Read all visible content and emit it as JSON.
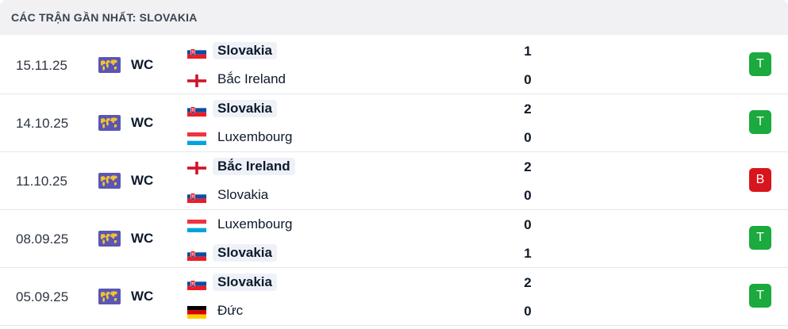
{
  "header": {
    "title": "CÁC TRẬN GẦN NHẤT: SLOVAKIA"
  },
  "colors": {
    "win": "#1aaa3d",
    "loss": "#d8151d",
    "win_highlight": "#eef2f8"
  },
  "matches": [
    {
      "date": "15.11.25",
      "competition": "WC",
      "competition_icon": "world-map-icon",
      "home": {
        "name": "Slovakia",
        "flag": "slovakia-flag",
        "score": "1",
        "winner": true
      },
      "away": {
        "name": "Bắc Ireland",
        "flag": "northern-ireland-flag",
        "score": "0",
        "winner": false
      },
      "result": "T"
    },
    {
      "date": "14.10.25",
      "competition": "WC",
      "competition_icon": "world-map-icon",
      "home": {
        "name": "Slovakia",
        "flag": "slovakia-flag",
        "score": "2",
        "winner": true
      },
      "away": {
        "name": "Luxembourg",
        "flag": "luxembourg-flag",
        "score": "0",
        "winner": false
      },
      "result": "T"
    },
    {
      "date": "11.10.25",
      "competition": "WC",
      "competition_icon": "world-map-icon",
      "home": {
        "name": "Bắc Ireland",
        "flag": "northern-ireland-flag",
        "score": "2",
        "winner": true
      },
      "away": {
        "name": "Slovakia",
        "flag": "slovakia-flag",
        "score": "0",
        "winner": false
      },
      "result": "B"
    },
    {
      "date": "08.09.25",
      "competition": "WC",
      "competition_icon": "world-map-icon",
      "home": {
        "name": "Luxembourg",
        "flag": "luxembourg-flag",
        "score": "0",
        "winner": false
      },
      "away": {
        "name": "Slovakia",
        "flag": "slovakia-flag",
        "score": "1",
        "winner": true
      },
      "result": "T"
    },
    {
      "date": "05.09.25",
      "competition": "WC",
      "competition_icon": "world-map-icon",
      "home": {
        "name": "Slovakia",
        "flag": "slovakia-flag",
        "score": "2",
        "winner": true
      },
      "away": {
        "name": "Đức",
        "flag": "germany-flag",
        "score": "0",
        "winner": false
      },
      "result": "T"
    }
  ]
}
